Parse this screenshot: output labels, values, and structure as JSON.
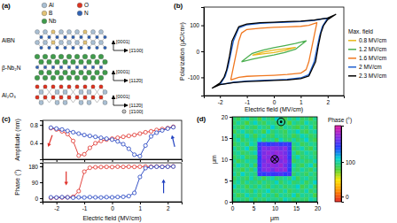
{
  "panel_a": {
    "label": "(a)",
    "atoms": [
      {
        "element": "Al",
        "color": "#a9bfd3"
      },
      {
        "element": "B",
        "color": "#e2c275"
      },
      {
        "element": "Nb",
        "color": "#3f9b4b"
      },
      {
        "element": "O",
        "color": "#e0321f"
      },
      {
        "element": "N",
        "color": "#2f62b5"
      }
    ],
    "layers": [
      {
        "label": "AlBN",
        "directions": [
          "[1̄100]",
          "[0001]"
        ]
      },
      {
        "label": "β-Nb₂N",
        "directions": [
          "[112̄0]",
          "[0001]"
        ]
      },
      {
        "label": "Al₂O₃",
        "directions": [
          "[112̄0]",
          "[0001]",
          "[1̄100]"
        ]
      }
    ]
  },
  "chart_data": [
    {
      "type": "line",
      "title": "(b)",
      "x_label": "Electric field (MV/cm)",
      "y_label": "Polarization (μC/cm²)",
      "xlim": [
        -2.6,
        2.6
      ],
      "xticks": [
        -2,
        -1,
        0,
        1,
        2
      ],
      "ylim": [
        -170,
        170
      ],
      "yticks": [
        -100,
        0,
        100
      ],
      "legend": "right",
      "legend_title": "Max. field",
      "series": [
        {
          "name": "0.8 MV/cm",
          "color": "#e8b81c",
          "x": [
            -0.8,
            -0.4,
            0,
            0.4,
            0.8,
            0.4,
            0,
            -0.4,
            -0.8
          ],
          "values": [
            -15,
            -10,
            -5,
            3,
            15,
            10,
            5,
            -3,
            -15
          ]
        },
        {
          "name": "1.2 MV/cm",
          "color": "#4caf50",
          "x": [
            -1.2,
            -0.8,
            -0.4,
            0,
            0.4,
            0.8,
            1.2,
            0.8,
            0.4,
            0,
            -0.4,
            -0.8,
            -1.2
          ],
          "values": [
            -40,
            -30,
            -22,
            -14,
            -5,
            8,
            40,
            30,
            22,
            14,
            5,
            -8,
            -40
          ]
        },
        {
          "name": "1.6 MV/cm",
          "color": "#f07820",
          "x": [
            -1.6,
            -1.3,
            -1.0,
            -0.5,
            0,
            0.5,
            1.0,
            1.2,
            1.3,
            1.4,
            1.5,
            1.6,
            1.3,
            1.0,
            0.5,
            0,
            -0.5,
            -1.0,
            -1.2,
            -1.3,
            -1.4,
            -1.5,
            -1.6
          ],
          "values": [
            -110,
            -100,
            -96,
            -94,
            -92,
            -89,
            -84,
            -70,
            -40,
            10,
            60,
            110,
            100,
            96,
            94,
            92,
            89,
            84,
            70,
            40,
            -10,
            -60,
            -110
          ]
        },
        {
          "name": "2 MV/cm",
          "color": "#2060d0",
          "x": [
            -2.0,
            -1.5,
            -1.0,
            -0.5,
            0,
            0.5,
            1.0,
            1.3,
            1.5,
            1.6,
            1.7,
            1.8,
            2.0,
            1.5,
            1.0,
            0.5,
            0,
            -0.5,
            -1.0,
            -1.3,
            -1.5,
            -1.6,
            -1.7,
            -1.8,
            -2.0
          ],
          "values": [
            -128,
            -119,
            -114,
            -112,
            -110,
            -108,
            -102,
            -90,
            -40,
            10,
            60,
            95,
            128,
            119,
            114,
            112,
            110,
            108,
            102,
            90,
            40,
            -10,
            -60,
            -95,
            -128
          ]
        },
        {
          "name": "2.3 MV/cm",
          "color": "#000000",
          "x": [
            -2.3,
            -2.0,
            -1.5,
            -1.0,
            -0.5,
            0,
            0.5,
            1.0,
            1.3,
            1.55,
            1.65,
            1.75,
            1.85,
            2.0,
            2.3,
            2.0,
            1.5,
            1.0,
            0.5,
            0,
            -0.5,
            -1.0,
            -1.3,
            -1.55,
            -1.65,
            -1.75,
            -1.85,
            -2.0,
            -2.3
          ],
          "values": [
            -142,
            -128,
            -120,
            -116,
            -114,
            -112,
            -110,
            -105,
            -95,
            -40,
            20,
            70,
            100,
            122,
            142,
            128,
            120,
            116,
            114,
            112,
            110,
            105,
            95,
            40,
            -20,
            -70,
            -100,
            -122,
            -142
          ]
        }
      ]
    },
    {
      "type": "line",
      "title": "(c)",
      "y_label": "Amplitude (nm)",
      "xlim": [
        -2.5,
        2.5
      ],
      "xticks": [
        -2,
        -1,
        0,
        1,
        2
      ],
      "ylim": [
        0.05,
        0.9
      ],
      "yticks": [
        0.4,
        0.8
      ],
      "tick_labels": "y",
      "marker": "circle",
      "series": [
        {
          "color": "#e0302a",
          "x": [
            -2.2,
            -2.0,
            -1.8,
            -1.6,
            -1.4,
            -1.2,
            -1.0,
            -0.8,
            -0.6,
            -0.4,
            -0.2,
            0,
            0.2,
            0.4,
            0.6,
            0.8,
            1.0,
            1.2,
            1.4,
            1.6,
            1.8,
            2.0,
            2.2
          ],
          "values": [
            0.73,
            0.7,
            0.66,
            0.6,
            0.45,
            0.13,
            0.16,
            0.3,
            0.4,
            0.45,
            0.48,
            0.5,
            0.52,
            0.54,
            0.56,
            0.58,
            0.61,
            0.64,
            0.66,
            0.69,
            0.71,
            0.73,
            0.76
          ]
        },
        {
          "color": "#2040c0",
          "x": [
            -2.2,
            -2.0,
            -1.8,
            -1.6,
            -1.4,
            -1.2,
            -1.0,
            -0.8,
            -0.6,
            -0.4,
            -0.2,
            0,
            0.2,
            0.4,
            0.6,
            0.8,
            1.0,
            1.2,
            1.4,
            1.6,
            1.8,
            2.0,
            2.2
          ],
          "values": [
            0.74,
            0.72,
            0.7,
            0.67,
            0.64,
            0.61,
            0.58,
            0.56,
            0.54,
            0.52,
            0.5,
            0.48,
            0.44,
            0.38,
            0.28,
            0.15,
            0.12,
            0.35,
            0.55,
            0.63,
            0.68,
            0.72,
            0.75
          ]
        }
      ]
    },
    {
      "type": "line",
      "x_label": "Electric field (MV/cm)",
      "y_label": "Phase (°)",
      "xlim": [
        -2.5,
        2.5
      ],
      "xticks": [
        -2,
        -1,
        0,
        1,
        2
      ],
      "ylim": [
        -20,
        200
      ],
      "yticks": [
        0,
        90,
        180
      ],
      "marker": "circle",
      "series": [
        {
          "color": "#e0302a",
          "x": [
            -2.2,
            -2.0,
            -1.8,
            -1.6,
            -1.4,
            -1.2,
            -1.0,
            -0.8,
            -0.6,
            -0.4,
            -0.2,
            0,
            0.2,
            0.4,
            0.6,
            0.8,
            1.0,
            1.2,
            1.4,
            1.6,
            1.8,
            2.0,
            2.2
          ],
          "values": [
            2,
            3,
            4,
            5,
            8,
            40,
            150,
            172,
            175,
            176,
            177,
            176,
            178,
            177,
            178,
            177,
            178,
            179,
            178,
            179,
            178,
            179,
            180
          ]
        },
        {
          "color": "#2040c0",
          "x": [
            -2.2,
            -2.0,
            -1.8,
            -1.6,
            -1.4,
            -1.2,
            -1.0,
            -0.8,
            -0.6,
            -0.4,
            -0.2,
            0,
            0.2,
            0.4,
            0.6,
            0.8,
            1.0,
            1.2,
            1.4,
            1.6,
            1.8,
            2.0,
            2.2
          ],
          "values": [
            5,
            4,
            6,
            5,
            3,
            5,
            4,
            6,
            5,
            4,
            6,
            5,
            7,
            8,
            12,
            30,
            120,
            170,
            176,
            178,
            177,
            178,
            179
          ]
        }
      ]
    },
    {
      "type": "heatmap",
      "title": "(d)",
      "x_label": "μm",
      "y_label": "μm",
      "xlim": [
        0,
        20
      ],
      "xticks": [
        0,
        5,
        10,
        15,
        20
      ],
      "ylim": [
        0,
        20
      ],
      "yticks": [
        0,
        5,
        10,
        15,
        20
      ],
      "colorbar_label": "Phase (°)",
      "colorbar_range": [
        -15,
        205
      ],
      "colorbar_ticks": [
        0,
        100
      ],
      "x": [
        0.5,
        1.5,
        2.5,
        3.5,
        4.5,
        5.5,
        6.5,
        7.5,
        8.5,
        9.5,
        10.5,
        11.5,
        12.5,
        13.5,
        14.5,
        15.5,
        16.5,
        17.5,
        18.5,
        19.5
      ],
      "y": [
        19.5,
        18.5,
        17.5,
        16.5,
        15.5,
        14.5,
        13.5,
        12.5,
        11.5,
        10.5,
        9.5,
        8.5,
        7.5,
        6.5,
        5.5,
        4.5,
        3.5,
        2.5,
        1.5,
        0.5
      ],
      "z": [
        [
          92,
          85,
          98,
          104,
          88,
          95,
          79,
          101,
          93,
          87,
          110,
          96,
          84,
          99,
          91,
          105,
          88,
          94,
          82,
          97
        ],
        [
          88,
          101,
          93,
          80,
          97,
          108,
          92,
          86,
          99,
          95,
          89,
          103,
          94,
          78,
          100,
          92,
          87,
          106,
          95,
          90
        ],
        [
          96,
          90,
          84,
          99,
          92,
          86,
          103,
          95,
          88,
          112,
          93,
          85,
          100,
          96,
          89,
          81,
          98,
          91,
          104,
          87
        ],
        [
          83,
          97,
          105,
          91,
          87,
          100,
          94,
          82,
          107,
          90,
          98,
          92,
          86,
          101,
          95,
          109,
          90,
          84,
          96,
          102
        ],
        [
          99,
          87,
          92,
          108,
          95,
          83,
          98,
          104,
          91,
          86,
          102,
          95,
          88,
          97,
          84,
          93,
          106,
          99,
          87,
          92
        ],
        [
          91,
          104,
          86,
          95,
          101,
          92,
          110,
          89,
          96,
          99,
          85,
          107,
          93,
          90,
          102,
          88,
          95,
          111,
          91,
          84
        ],
        [
          85,
          93,
          99,
          88,
          106,
          97,
          148,
          152,
          145,
          150,
          155,
          147,
          151,
          146,
          94,
          101,
          86,
          92,
          100,
          95
        ],
        [
          102,
          89,
          95,
          110,
          84,
          92,
          150,
          172,
          168,
          175,
          170,
          166,
          174,
          149,
          88,
          96,
          105,
          90,
          83,
          98
        ],
        [
          94,
          100,
          87,
          93,
          98,
          105,
          153,
          169,
          176,
          171,
          178,
          173,
          167,
          152,
          99,
          84,
          92,
          103,
          97,
          89
        ],
        [
          87,
          96,
          104,
          85,
          91,
          88,
          146,
          175,
          170,
          180,
          168,
          177,
          171,
          148,
          93,
          107,
          89,
          95,
          101,
          92
        ],
        [
          98,
          84,
          91,
          102,
          96,
          99,
          151,
          167,
          178,
          172,
          176,
          169,
          175,
          154,
          86,
          94,
          98,
          88,
          92,
          104
        ],
        [
          90,
          106,
          97,
          89,
          103,
          86,
          147,
          173,
          169,
          177,
          171,
          180,
          166,
          150,
          102,
          91,
          85,
          99,
          108,
          87
        ],
        [
          95,
          92,
          83,
          98,
          88,
          101,
          152,
          170,
          174,
          166,
          179,
          172,
          176,
          145,
          95,
          89,
          103,
          93,
          86,
          100
        ],
        [
          101,
          88,
          109,
          94,
          99,
          93,
          149,
          146,
          153,
          148,
          151,
          155,
          147,
          152,
          90,
          98,
          94,
          87,
          99,
          91
        ],
        [
          86,
          97,
          92,
          87,
          105,
          90,
          98,
          84,
          96,
          103,
          89,
          94,
          100,
          92,
          106,
          85,
          97,
          102,
          90,
          95
        ],
        [
          93,
          103,
          88,
          100,
          92,
          96,
          86,
          99,
          91,
          95,
          108,
          87,
          97,
          104,
          89,
          93,
          101,
          86,
          94,
          109
        ],
        [
          107,
          91,
          96,
          84,
          98,
          89,
          102,
          93,
          85,
          100,
          92,
          99,
          88,
          95,
          97,
          110,
          84,
          92,
          103,
          88
        ],
        [
          89,
          95,
          101,
          93,
          86,
          104,
          91,
          97,
          109,
          88,
          96,
          90,
          103,
          86,
          94,
          99,
          91,
          105,
          87,
          96
        ],
        [
          97,
          84,
          90,
          106,
          94,
          99,
          87,
          103,
          92,
          98,
          85,
          101,
          95,
          91,
          108,
          86,
          100,
          94,
          98,
          83
        ],
        [
          92,
          99,
          94,
          88,
          102,
          85,
          96,
          90,
          100,
          94,
          97,
          89,
          106,
          98,
          87,
          95,
          92,
          88,
          104,
          97
        ]
      ]
    }
  ]
}
